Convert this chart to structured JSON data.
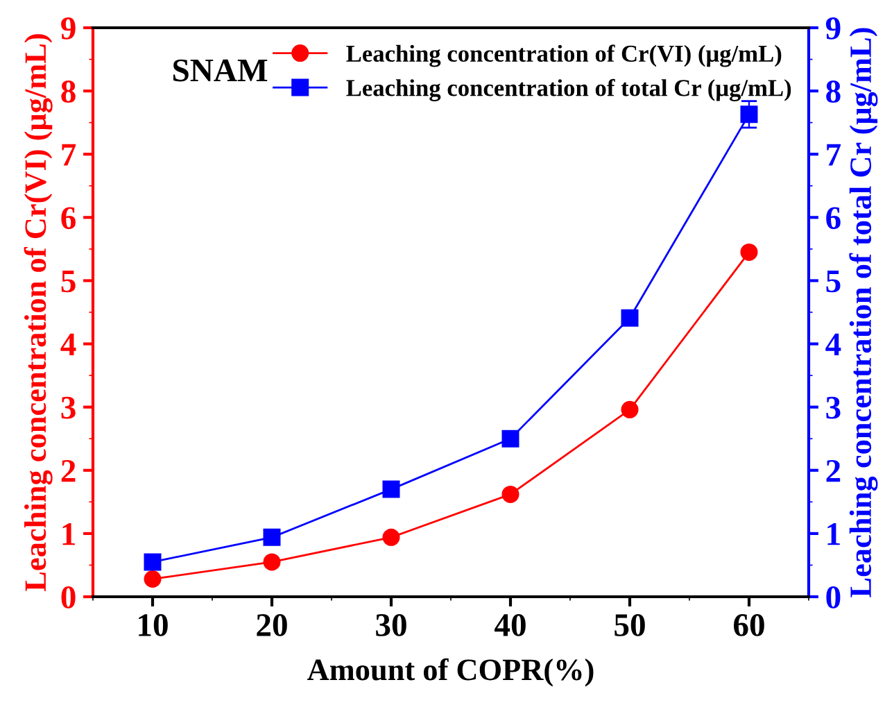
{
  "chart_data": {
    "type": "line",
    "xlabel": "Amount of COPR(%)",
    "ylabel": "Leaching concentration of Cr(VI) (μg/mL)",
    "y2label": "Leaching concentration of total Cr (μg/mL)",
    "annotations": [
      "SNAM"
    ],
    "x": [
      10,
      20,
      30,
      40,
      50,
      60
    ],
    "series": [
      {
        "name": "Leaching concentration of Cr(VI) (μg/mL)",
        "color": "#ff0000",
        "values": [
          0.28,
          0.55,
          0.94,
          1.62,
          2.96,
          5.45
        ],
        "marker": "circle"
      },
      {
        "name": "Leaching concentration of total Cr (μg/mL)",
        "color": "#0000ff",
        "values": [
          0.55,
          0.94,
          1.7,
          2.5,
          4.41,
          7.63
        ],
        "marker": "square",
        "axis": "y2",
        "errors": [
          null,
          null,
          null,
          null,
          null,
          0.21
        ]
      }
    ],
    "xlim": [
      5,
      65
    ],
    "xticks": [
      10,
      20,
      30,
      40,
      50,
      60
    ],
    "ylim": [
      0,
      9
    ],
    "yticks": [
      0,
      1,
      2,
      3,
      4,
      5,
      6,
      7,
      8,
      9
    ],
    "y2lim": [
      0,
      9
    ],
    "y2ticks": [
      0,
      1,
      2,
      3,
      4,
      5,
      6,
      7,
      8,
      9
    ],
    "legend": "top right",
    "grid": false,
    "line_style": "solid"
  }
}
